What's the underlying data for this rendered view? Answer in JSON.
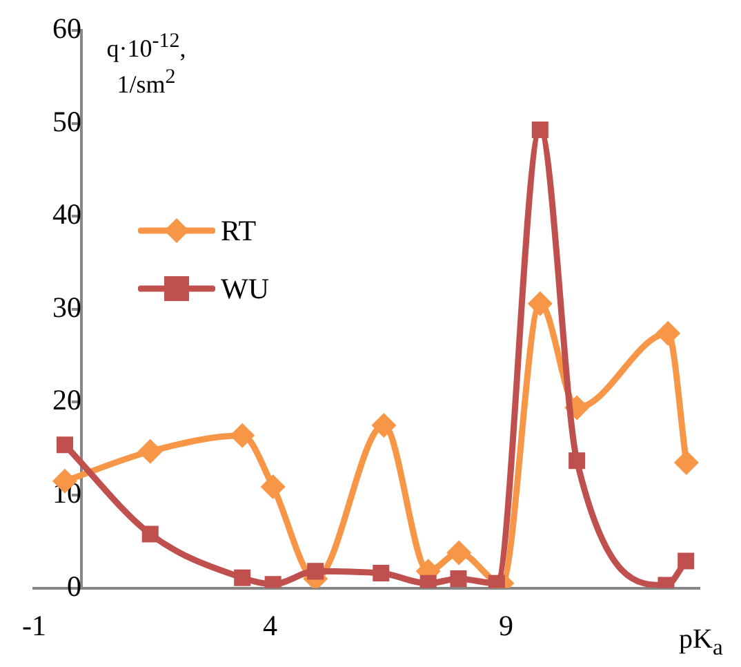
{
  "chart_data": {
    "type": "line",
    "xlabel": "pK$_{a}$",
    "ylabel": "q·10$^{-12}$, 1/sm$^{2}$",
    "xlim": [
      -1,
      13.1
    ],
    "xticks": [
      -1,
      4,
      9
    ],
    "ylim": [
      0,
      60
    ],
    "yticks": [
      0,
      10,
      20,
      30,
      40,
      50,
      60
    ],
    "grid": false,
    "legend": "left",
    "series": [
      {
        "name": "RT",
        "color": "#f79646",
        "marker": "diamond",
        "x": [
          -0.35,
          1.46,
          3.41,
          4.06,
          4.96,
          6.41,
          7.35,
          8.0,
          8.91,
          9.72,
          10.5,
          12.43,
          12.82
        ],
        "values": [
          11.5,
          14.7,
          16.4,
          10.9,
          1.0,
          17.5,
          1.8,
          3.8,
          0.5,
          30.6,
          19.4,
          27.4,
          13.5
        ]
      },
      {
        "name": "WU",
        "color": "#c0504d",
        "marker": "square",
        "x": [
          -0.35,
          1.46,
          3.41,
          4.06,
          4.96,
          6.35,
          7.35,
          7.99,
          8.8,
          9.72,
          10.5,
          12.39,
          12.81
        ],
        "values": [
          15.4,
          5.8,
          1.1,
          0.4,
          1.8,
          1.6,
          0.5,
          1.0,
          0.5,
          49.3,
          13.7,
          0.3,
          2.9
        ]
      }
    ]
  }
}
